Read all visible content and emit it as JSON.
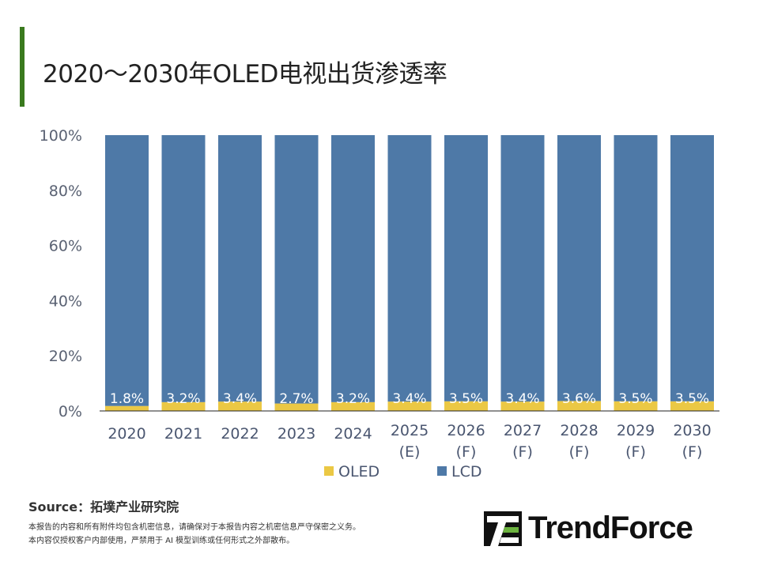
{
  "title": "2020～2030年OLED电视出货渗透率",
  "chart_data": {
    "type": "bar",
    "stacked": true,
    "categories": [
      [
        "2020"
      ],
      [
        "2021"
      ],
      [
        "2022"
      ],
      [
        "2023"
      ],
      [
        "2024"
      ],
      [
        "2025",
        "(E)"
      ],
      [
        "2026",
        "(F)"
      ],
      [
        "2027",
        "(F)"
      ],
      [
        "2028",
        "(F)"
      ],
      [
        "2029",
        "(F)"
      ],
      [
        "2030",
        "(F)"
      ]
    ],
    "series": [
      {
        "name": "OLED",
        "color": "#ebc844",
        "values": [
          1.8,
          3.2,
          3.4,
          2.7,
          3.2,
          3.4,
          3.5,
          3.4,
          3.6,
          3.5,
          3.5
        ]
      },
      {
        "name": "LCD",
        "color": "#4e79a7",
        "values": [
          98.2,
          96.8,
          96.6,
          97.3,
          96.8,
          96.6,
          96.5,
          96.6,
          96.4,
          96.5,
          96.5
        ]
      }
    ],
    "data_labels": [
      "1.8%",
      "3.2%",
      "3.4%",
      "2.7%",
      "3.2%",
      "3.4%",
      "3.5%",
      "3.4%",
      "3.6%",
      "3.5%",
      "3.5%"
    ],
    "yticks": [
      "0%",
      "20%",
      "40%",
      "60%",
      "80%",
      "100%"
    ],
    "ylim": [
      0,
      100
    ],
    "legend": "bottom"
  },
  "source": "Source：拓墣产业研究院",
  "notes": [
    "本报告的内容和所有附件均包含机密信息，请确保对于本报告内容之机密信息严守保密之义务。",
    "本内容仅授权客户内部使用，严禁用于 AI 模型训练或任何形式之外部散布。"
  ],
  "logo": {
    "text": "TrendForce"
  }
}
